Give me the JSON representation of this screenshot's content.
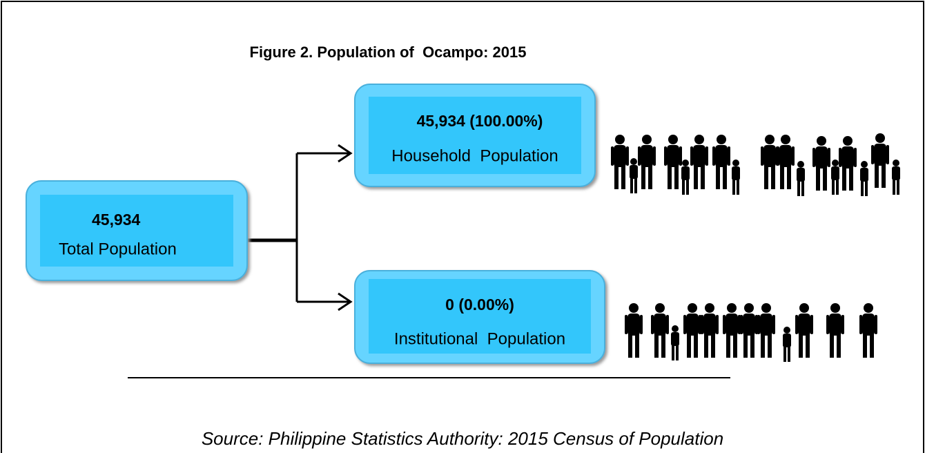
{
  "title": "Figure 2. Population of  Ocampo: 2015",
  "nodes": [
    {
      "value": "45,934",
      "label": "Total Population"
    },
    {
      "value": "45,934 (100.00%)",
      "label": "Household  Population"
    },
    {
      "value": "0 (0.00%)",
      "label": "Institutional  Population"
    }
  ],
  "source": "Source: Philippine Statistics Authority: 2015 Census of Population"
}
